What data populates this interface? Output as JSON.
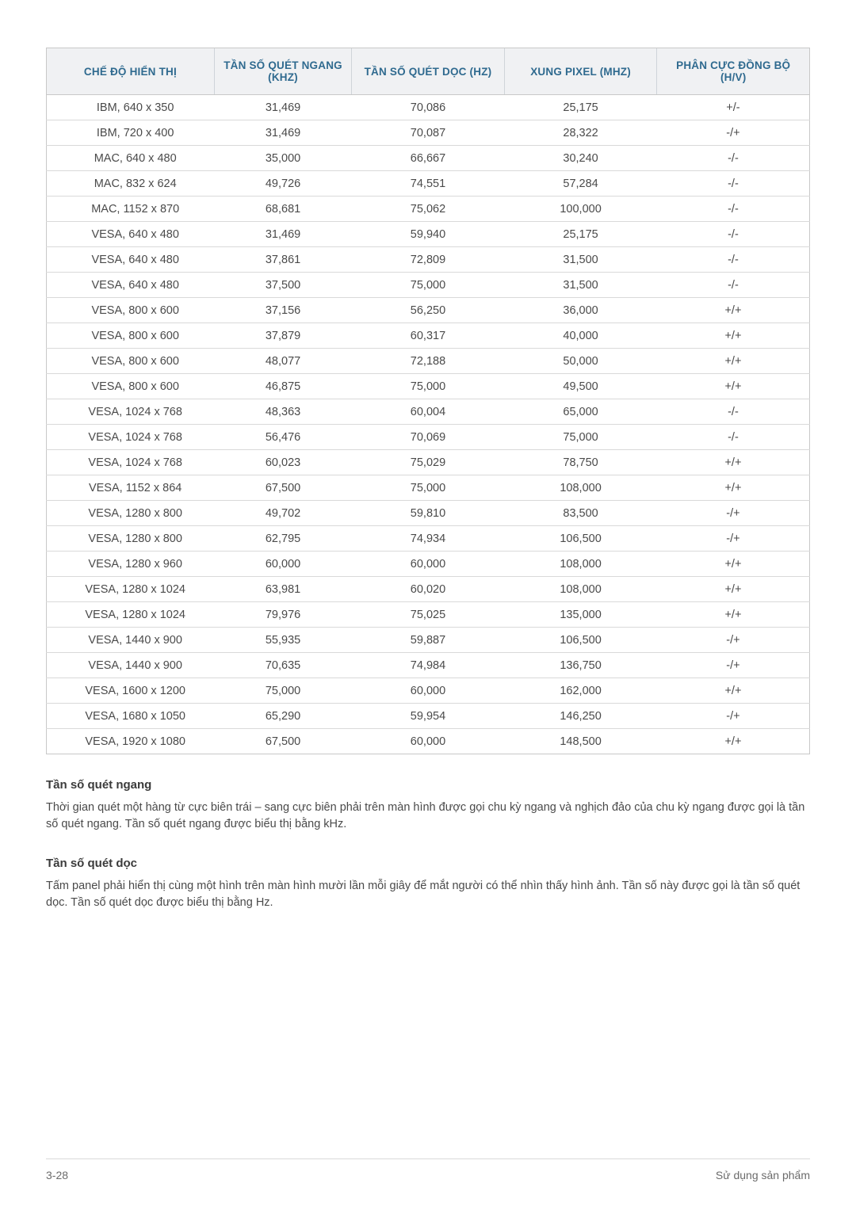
{
  "table": {
    "headers": [
      "CHẾ ĐỘ HIỂN THỊ",
      "TẦN SỐ QUÉT NGANG (KHZ)",
      "TẦN SỐ QUÉT DỌC (HZ)",
      "XUNG PIXEL (MHZ)",
      "PHÂN CỰC ĐỒNG BỘ (H/V)"
    ],
    "rows": [
      [
        "IBM, 640 x 350",
        "31,469",
        "70,086",
        "25,175",
        "+/-"
      ],
      [
        "IBM, 720 x 400",
        "31,469",
        "70,087",
        "28,322",
        "-/+"
      ],
      [
        "MAC, 640 x 480",
        "35,000",
        "66,667",
        "30,240",
        "-/-"
      ],
      [
        "MAC, 832 x 624",
        "49,726",
        "74,551",
        "57,284",
        "-/-"
      ],
      [
        "MAC, 1152 x 870",
        "68,681",
        "75,062",
        "100,000",
        "-/-"
      ],
      [
        "VESA, 640 x 480",
        "31,469",
        "59,940",
        "25,175",
        "-/-"
      ],
      [
        "VESA, 640 x 480",
        "37,861",
        "72,809",
        "31,500",
        "-/-"
      ],
      [
        "VESA, 640 x 480",
        "37,500",
        "75,000",
        "31,500",
        "-/-"
      ],
      [
        "VESA, 800 x 600",
        "37,156",
        "56,250",
        "36,000",
        "+/+"
      ],
      [
        "VESA, 800 x 600",
        "37,879",
        "60,317",
        "40,000",
        "+/+"
      ],
      [
        "VESA, 800 x 600",
        "48,077",
        "72,188",
        "50,000",
        "+/+"
      ],
      [
        "VESA, 800 x 600",
        "46,875",
        "75,000",
        "49,500",
        "+/+"
      ],
      [
        "VESA, 1024 x 768",
        "48,363",
        "60,004",
        "65,000",
        "-/-"
      ],
      [
        "VESA, 1024 x 768",
        "56,476",
        "70,069",
        "75,000",
        "-/-"
      ],
      [
        "VESA, 1024 x 768",
        "60,023",
        "75,029",
        "78,750",
        "+/+"
      ],
      [
        "VESA, 1152 x 864",
        "67,500",
        "75,000",
        "108,000",
        "+/+"
      ],
      [
        "VESA, 1280 x 800",
        "49,702",
        "59,810",
        "83,500",
        "-/+"
      ],
      [
        "VESA, 1280 x 800",
        "62,795",
        "74,934",
        "106,500",
        "-/+"
      ],
      [
        "VESA, 1280 x 960",
        "60,000",
        "60,000",
        "108,000",
        "+/+"
      ],
      [
        "VESA, 1280 x 1024",
        "63,981",
        "60,020",
        "108,000",
        "+/+"
      ],
      [
        "VESA, 1280 x 1024",
        "79,976",
        "75,025",
        "135,000",
        "+/+"
      ],
      [
        "VESA, 1440 x 900",
        "55,935",
        "59,887",
        "106,500",
        "-/+"
      ],
      [
        "VESA, 1440 x 900",
        "70,635",
        "74,984",
        "136,750",
        "-/+"
      ],
      [
        "VESA, 1600 x 1200",
        "75,000",
        "60,000",
        "162,000",
        "+/+"
      ],
      [
        "VESA, 1680 x 1050",
        "65,290",
        "59,954",
        "146,250",
        "-/+"
      ],
      [
        "VESA, 1920 x 1080",
        "67,500",
        "60,000",
        "148,500",
        "+/+"
      ]
    ]
  },
  "sections": {
    "h1_title": "Tần số quét ngang",
    "h1_body": "Thời gian quét một hàng từ cực biên trái – sang cực biên phải trên màn hình được gọi chu kỳ ngang và nghịch đảo của chu kỳ ngang được gọi là tần số quét ngang. Tần số quét ngang được biểu thị bằng kHz.",
    "h2_title": "Tần số quét dọc",
    "h2_body": "Tấm panel phải hiển thị cùng một hình trên màn hình mười lần mỗi giây để mắt người có thể nhìn thấy hình ảnh. Tần số này được gọi là tần số quét dọc. Tần số quét dọc được biểu thị bằng Hz."
  },
  "footer": {
    "left": "3-28",
    "right": "Sử dụng sản phẩm"
  }
}
